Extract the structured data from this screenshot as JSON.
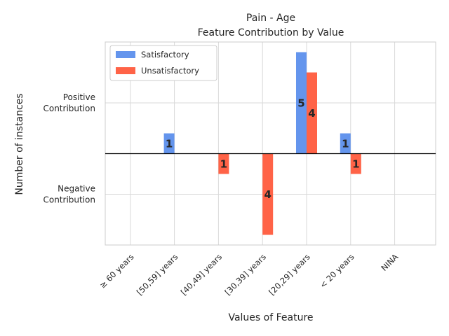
{
  "chart_data": {
    "type": "bar",
    "title": "Pain - Age",
    "subtitle": "Feature Contribution by Value",
    "xlabel": "Values of Feature",
    "ylabel": "Number of instances",
    "y_tick_labels": [
      {
        "label": "Positive\nContribution",
        "value": 2.5
      },
      {
        "label": "Negative\nContribution",
        "value": -2
      }
    ],
    "ylim": [
      -4.5,
      5.5
    ],
    "categories": [
      "≥ 60 years",
      "[50,59] years",
      "[40,49] years",
      "[30,39] years",
      "[20,29] years",
      "< 20 years",
      "NINA"
    ],
    "series": [
      {
        "name": "Satisfactory",
        "color": "#6495ED",
        "values": [
          0,
          1,
          0,
          0,
          5,
          1,
          0
        ]
      },
      {
        "name": "Unsatisfactory",
        "color": "#FF6347",
        "values": [
          0,
          0,
          -1,
          -4,
          4,
          -1,
          0
        ]
      }
    ],
    "legend_position": "top-left",
    "grid": true
  }
}
